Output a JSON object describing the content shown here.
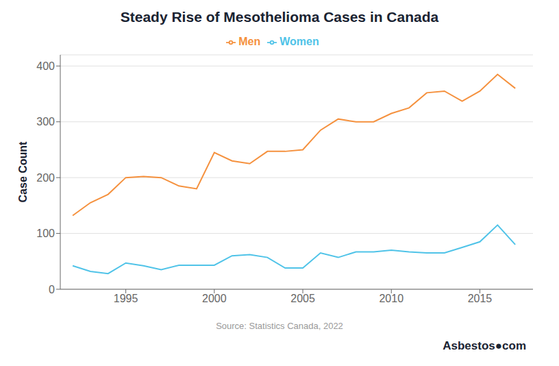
{
  "chart_data": {
    "type": "line",
    "title": "Steady Rise of Mesothelioma Cases in Canada",
    "ylabel": "Case Count",
    "x": [
      1992,
      1993,
      1994,
      1995,
      1996,
      1997,
      1998,
      1999,
      2000,
      2001,
      2002,
      2003,
      2004,
      2005,
      2006,
      2007,
      2008,
      2009,
      2010,
      2011,
      2012,
      2013,
      2014,
      2015,
      2016,
      2017
    ],
    "series": [
      {
        "name": "Men",
        "color": "#f5913e",
        "values": [
          132,
          155,
          170,
          200,
          202,
          200,
          185,
          180,
          245,
          230,
          225,
          247,
          247,
          250,
          285,
          305,
          300,
          300,
          315,
          325,
          352,
          355,
          337,
          355,
          385,
          360
        ]
      },
      {
        "name": "Women",
        "color": "#4fc3e8",
        "values": [
          42,
          32,
          28,
          47,
          42,
          35,
          43,
          43,
          43,
          60,
          62,
          57,
          38,
          38,
          65,
          57,
          67,
          67,
          70,
          67,
          65,
          65,
          75,
          85,
          115,
          80
        ]
      }
    ],
    "xlim": [
      1991.3,
      2018
    ],
    "xticks": [
      1995,
      2000,
      2005,
      2010,
      2015
    ],
    "ylim": [
      0,
      420
    ],
    "yticks": [
      0,
      100,
      200,
      300,
      400
    ],
    "grid": true,
    "legend": "top",
    "annotations": [
      "Source: Statistics Canada, 2022",
      "Asbestos●com"
    ]
  }
}
